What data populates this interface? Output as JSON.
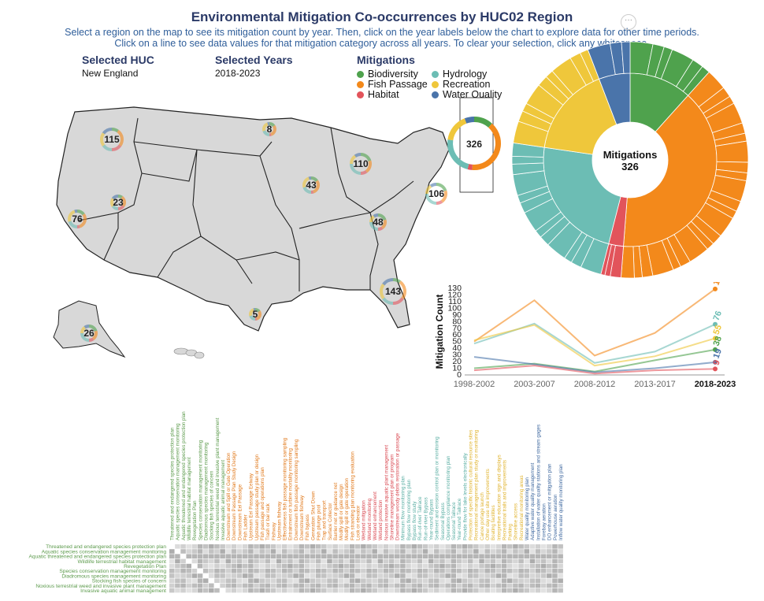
{
  "title": "Environmental Mitigation Co-occurrences by HUC02 Region",
  "subtitle1": "Select a region on the map to see its mitigation count by year. Then, click on the year labels below the chart to explore data for other time periods.",
  "subtitle2": "Click on a line to see data values for that mitigation category across all years. To clear your selection, click any whitespace.",
  "more_icon": "ellipsis-icon",
  "selected_huc": {
    "label": "Selected HUC",
    "value": "New England"
  },
  "selected_years": {
    "label": "Selected Years",
    "value": "2018-2023"
  },
  "legend": {
    "title": "Mitigations",
    "items": [
      {
        "name": "Biodiversity",
        "color": "#4fa24d"
      },
      {
        "name": "Hydrology",
        "color": "#6cbdb4"
      },
      {
        "name": "Fish Passage",
        "color": "#f3891b"
      },
      {
        "name": "Recreation",
        "color": "#efc73b"
      },
      {
        "name": "Habitat",
        "color": "#e2545b"
      },
      {
        "name": "Water Quality",
        "color": "#4a74aa"
      }
    ]
  },
  "map": {
    "region_counts": [
      {
        "region": "Missouri",
        "count": "115"
      },
      {
        "region": "Souris-Red-Rainy",
        "count": "8"
      },
      {
        "region": "Great Lakes",
        "count": "110"
      },
      {
        "region": "New England",
        "count": "326"
      },
      {
        "region": "Upper Mississippi",
        "count": "43"
      },
      {
        "region": "Mid Atlantic",
        "count": "106"
      },
      {
        "region": "Great Basin",
        "count": "23"
      },
      {
        "region": "California",
        "count": "76"
      },
      {
        "region": "Ohio",
        "count": "48"
      },
      {
        "region": "South Atlantic-Gulf",
        "count": "143"
      },
      {
        "region": "Texas-Gulf",
        "count": "5"
      },
      {
        "region": "Alaska",
        "count": "26"
      }
    ]
  },
  "chart_data": [
    {
      "type": "sunburst",
      "center_label": "Mitigations",
      "center_value": "326",
      "inner_ring": [
        {
          "name": "Biodiversity",
          "value": 38
        },
        {
          "name": "Fish Passage",
          "value": 129
        },
        {
          "name": "Habitat",
          "value": 9
        },
        {
          "name": "Hydrology",
          "value": 76
        },
        {
          "name": "Recreation",
          "value": 55
        },
        {
          "name": "Water Quality",
          "value": 19
        }
      ]
    },
    {
      "type": "line",
      "ylabel": "Mitigation Count",
      "categories": [
        "1998-2002",
        "2003-2007",
        "2008-2012",
        "2013-2017",
        "2018-2023"
      ],
      "selected_category": "2018-2023",
      "ylim": [
        0,
        130
      ],
      "yticks": [
        "0",
        "10",
        "20",
        "30",
        "40",
        "50",
        "60",
        "70",
        "80",
        "90",
        "100",
        "110",
        "120",
        "130"
      ],
      "series": [
        {
          "name": "Fish Passage",
          "values": [
            50,
            112,
            29,
            63,
            129
          ],
          "end_label": "129"
        },
        {
          "name": "Hydrology",
          "values": [
            47,
            77,
            18,
            35,
            76
          ],
          "end_label": "76"
        },
        {
          "name": "Recreation",
          "values": [
            52,
            75,
            14,
            28,
            55
          ],
          "end_label": "55"
        },
        {
          "name": "Biodiversity",
          "values": [
            10,
            17,
            5,
            22,
            38
          ],
          "end_label": "38"
        },
        {
          "name": "Water Quality",
          "values": [
            27,
            16,
            4,
            10,
            19
          ],
          "end_label": "19"
        },
        {
          "name": "Habitat",
          "values": [
            7,
            14,
            2,
            7,
            9
          ],
          "end_label": "9"
        }
      ]
    },
    {
      "type": "heatmap",
      "columns": [
        {
          "label": "Threatened and endangered species protection plan",
          "cat": "Biodiversity"
        },
        {
          "label": "Aquatic species conservation management monitoring",
          "cat": "Biodiversity"
        },
        {
          "label": "Aquatic threatened and endangered species protection plan",
          "cat": "Biodiversity"
        },
        {
          "label": "Wildlife terrestrial habitat management",
          "cat": "Biodiversity"
        },
        {
          "label": "Revegetation Plan",
          "cat": "Biodiversity"
        },
        {
          "label": "Species conservation management monitoring",
          "cat": "Biodiversity"
        },
        {
          "label": "Diadromous species management monitoring",
          "cat": "Biodiversity"
        },
        {
          "label": "Stocking fish species of concern",
          "cat": "Biodiversity"
        },
        {
          "label": "Noxious terrestrial weed and invasive plant management",
          "cat": "Biodiversity"
        },
        {
          "label": "Invasive aquatic animal management",
          "cat": "Biodiversity"
        },
        {
          "label": "Downstream and Spill or Gate Operation",
          "cat": "Fish Passage"
        },
        {
          "label": "Downstream Passage Plan Study Design",
          "cat": "Fish Passage"
        },
        {
          "label": "Downstream Eel Passage",
          "cat": "Fish Passage"
        },
        {
          "label": "Fish Ladder",
          "cat": "Fish Passage"
        },
        {
          "label": "Upstream Eel Passage Eelway",
          "cat": "Fish Passage"
        },
        {
          "label": "Upstream passage study plan or design",
          "cat": "Fish Passage"
        },
        {
          "label": "Fish passage and operations plan",
          "cat": "Fish Passage"
        },
        {
          "label": "Trash or bar rack",
          "cat": "Fish Passage"
        },
        {
          "label": "Fishway",
          "cat": "Fish Passage"
        },
        {
          "label": "Upstream fishway",
          "cat": "Fish Passage"
        },
        {
          "label": "Effectiveness fish passage monitoring sampling",
          "cat": "Fish Passage"
        },
        {
          "label": "Entrainment or turbine mortality monitoring",
          "cat": "Fish Passage"
        },
        {
          "label": "Downstream fish passage monitoring sampling",
          "cat": "Fish Passage"
        },
        {
          "label": "Downstream fishway",
          "cat": "Fish Passage"
        },
        {
          "label": "Fish bypass",
          "cat": "Fish Passage"
        },
        {
          "label": "Generation Shut Down",
          "cat": "Fish Passage"
        },
        {
          "label": "Fish plunge pool",
          "cat": "Fish Passage"
        },
        {
          "label": "Trap and transport",
          "cat": "Fish Passage"
        },
        {
          "label": "Surface Collector",
          "cat": "Fish Passage"
        },
        {
          "label": "Barrier net or guidance net",
          "cat": "Fish Passage"
        },
        {
          "label": "Modify spill or gate design",
          "cat": "Fish Passage"
        },
        {
          "label": "Modify spill or gate operation",
          "cat": "Fish Passage"
        },
        {
          "label": "Fish stranding plan monitoring evaluation",
          "cat": "Fish Passage"
        },
        {
          "label": "Look or elevator",
          "cat": "Fish Passage"
        },
        {
          "label": "Wetland mitigation",
          "cat": "Habitat"
        },
        {
          "label": "Wetland monitoring",
          "cat": "Habitat"
        },
        {
          "label": "Wetland enhancement",
          "cat": "Habitat"
        },
        {
          "label": "Wetland protection",
          "cat": "Habitat"
        },
        {
          "label": "Noxious invasive aquatic plant management",
          "cat": "Habitat"
        },
        {
          "label": "Shoreline management plan or program",
          "cat": "Habitat"
        },
        {
          "label": "Downstream woody debris restoration or passage",
          "cat": "Habitat"
        },
        {
          "label": "Minimum flow monitoring plan",
          "cat": "Hydrology"
        },
        {
          "label": "Bypass flow monitoring plan",
          "cat": "Hydrology"
        },
        {
          "label": "Bypass flow study",
          "cat": "Hydrology"
        },
        {
          "label": "Run-of-river Tailrace",
          "cat": "Hydrology"
        },
        {
          "label": "Run-of-river Bypass",
          "cat": "Hydrology"
        },
        {
          "label": "Year-round Bypass",
          "cat": "Hydrology"
        },
        {
          "label": "Sediment and erosion control plan or monitoring",
          "cat": "Hydrology"
        },
        {
          "label": "Seasonal Bypass",
          "cat": "Hydrology"
        },
        {
          "label": "Operations compliance monitoring plan",
          "cat": "Hydrology"
        },
        {
          "label": "Seasonal Tailrace",
          "cat": "Hydrology"
        },
        {
          "label": "Year-round Tailrace",
          "cat": "Hydrology"
        },
        {
          "label": "Provide flow for lake levels electronically",
          "cat": "Hydrology"
        },
        {
          "label": "Protection of specific historic cultural resource sites",
          "cat": "Recreation"
        },
        {
          "label": "Recreational management plan study or monitoring",
          "cat": "Recreation"
        },
        {
          "label": "Canoe portage launch",
          "cat": "Recreation"
        },
        {
          "label": "Other day use site improvements",
          "cat": "Recreation"
        },
        {
          "label": "Boating facilities",
          "cat": "Recreation"
        },
        {
          "label": "Interpretive education sign and displays",
          "cat": "Recreation"
        },
        {
          "label": "Recreational trails and improvements",
          "cat": "Recreation"
        },
        {
          "label": "Parking",
          "cat": "Recreation"
        },
        {
          "label": "Shoreline access",
          "cat": "Recreation"
        },
        {
          "label": "Recreational monitoring areas",
          "cat": "Recreation"
        },
        {
          "label": "Water quality monitoring plan",
          "cat": "Water Quality"
        },
        {
          "label": "Adaptive water quality management",
          "cat": "Water Quality"
        },
        {
          "label": "Installation of water quality stations and stream gages",
          "cat": "Water Quality"
        },
        {
          "label": "Forebay aeration",
          "cat": "Water Quality"
        },
        {
          "label": "DO enhancement or mitigation plan",
          "cat": "Water Quality"
        },
        {
          "label": "Powerhouse aeration",
          "cat": "Water Quality"
        },
        {
          "label": "Inflow water quality monitoring plan",
          "cat": "Water Quality"
        }
      ],
      "rows": [
        {
          "label": "Threatened and endangered species protection plan",
          "cat": "Biodiversity"
        },
        {
          "label": "Aquatic species conservation management monitoring",
          "cat": "Biodiversity"
        },
        {
          "label": "Aquatic threatened and endangered species protection plan",
          "cat": "Biodiversity"
        },
        {
          "label": "Wildlife terrestrial habitat management",
          "cat": "Biodiversity"
        },
        {
          "label": "Revegetation Plan",
          "cat": "Biodiversity"
        },
        {
          "label": "Species conservation management monitoring",
          "cat": "Biodiversity"
        },
        {
          "label": "Diadromous species management monitoring",
          "cat": "Biodiversity"
        },
        {
          "label": "Stocking fish species of concern",
          "cat": "Biodiversity"
        },
        {
          "label": "Noxious terrestrial weed and invasive plant management",
          "cat": "Biodiversity"
        },
        {
          "label": "Invasive aquatic animal management",
          "cat": "Biodiversity"
        }
      ]
    }
  ]
}
